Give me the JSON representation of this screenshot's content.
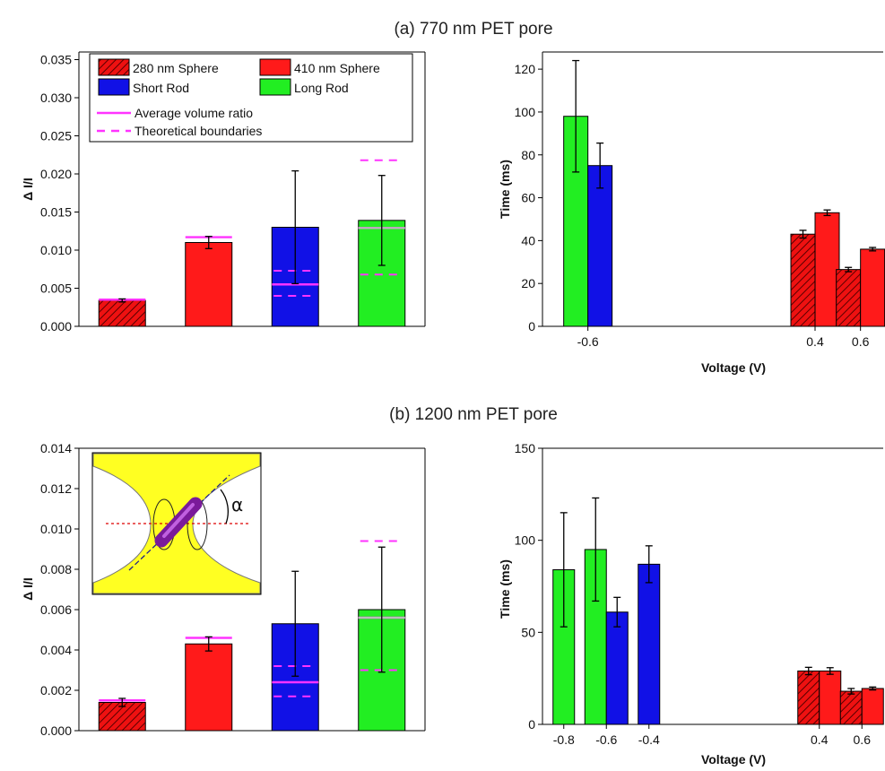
{
  "colors": {
    "sphere280": "#ee1111",
    "sphere410": "#ff1a1a",
    "short_rod": "#1111e6",
    "long_rod": "#22ee22",
    "average_line": "#ff33ff",
    "theoretical_line": "#ff33ff",
    "inner_line": "#bbbbbb",
    "inset_yellow": "#ffff22"
  },
  "chart_data": [
    {
      "id": "a_left",
      "type": "bar",
      "title": "(a)  770 nm PET pore",
      "xlabel": "",
      "ylabel": "Δ I/I",
      "ylim": [
        0,
        0.036
      ],
      "yticks": [
        "0.000",
        "0.005",
        "0.010",
        "0.015",
        "0.020",
        "0.025",
        "0.030",
        "0.035"
      ],
      "grid": false,
      "legend_placement": "top-left",
      "legend": [
        {
          "label": "280 nm Sphere",
          "style": "hatched-red"
        },
        {
          "label": "410 nm Sphere",
          "style": "red"
        },
        {
          "label": "Short Rod",
          "style": "blue"
        },
        {
          "label": "Long Rod",
          "style": "green"
        },
        {
          "label": "Average volume ratio",
          "style": "solid-magenta-line"
        },
        {
          "label": "Theoretical boundaries",
          "style": "dashed-magenta-line"
        }
      ],
      "bars": [
        {
          "category": "280 nm Sphere",
          "value": 0.0034,
          "err": 0.0002,
          "avg": 0.0035,
          "bounds": []
        },
        {
          "category": "410 nm Sphere",
          "value": 0.011,
          "err": 0.0008,
          "avg": 0.0117,
          "bounds": []
        },
        {
          "category": "Short Rod",
          "value": 0.013,
          "err": 0.0074,
          "avg": 0.0055,
          "bounds": [
            0.004,
            0.0073
          ]
        },
        {
          "category": "Long Rod",
          "value": 0.0139,
          "err": 0.0059,
          "avg": 0.0129,
          "bounds": [
            0.0068,
            0.0218
          ]
        }
      ]
    },
    {
      "id": "a_right",
      "type": "bar",
      "xlabel": "Voltage (V)",
      "ylabel": "Time (ms)",
      "xlim": [
        -0.8,
        0.7
      ],
      "ylim": [
        0,
        128
      ],
      "yticks": [
        "0",
        "20",
        "40",
        "60",
        "80",
        "100",
        "120"
      ],
      "xticks": [
        "-0.6",
        "0.4",
        "0.6"
      ],
      "grid": false,
      "groups": [
        {
          "voltage": -0.6,
          "bars": [
            {
              "series": "Long Rod",
              "value": 98,
              "err": 26
            },
            {
              "series": "Short Rod",
              "value": 75,
              "err": 10.5
            }
          ]
        },
        {
          "voltage": 0.4,
          "bars": [
            {
              "series": "280 nm Sphere",
              "value": 43,
              "err": 1.8
            },
            {
              "series": "410 nm Sphere",
              "value": 53,
              "err": 1.3
            }
          ]
        },
        {
          "voltage": 0.6,
          "bars": [
            {
              "series": "280 nm Sphere",
              "value": 26.5,
              "err": 1.0
            },
            {
              "series": "410 nm Sphere",
              "value": 36,
              "err": 0.8
            }
          ]
        }
      ]
    },
    {
      "id": "b_left",
      "type": "bar",
      "title": "(b)  1200 nm PET pore",
      "xlabel": "",
      "ylabel": "Δ I/I",
      "ylim": [
        0,
        0.014
      ],
      "yticks": [
        "0.000",
        "0.002",
        "0.004",
        "0.006",
        "0.008",
        "0.010",
        "0.012",
        "0.014"
      ],
      "grid": false,
      "inset": {
        "label": "α",
        "description_hidden": true
      },
      "bars": [
        {
          "category": "280 nm Sphere",
          "value": 0.0014,
          "err": 0.0002,
          "avg": 0.0015,
          "bounds": []
        },
        {
          "category": "410 nm Sphere",
          "value": 0.0043,
          "err": 0.00035,
          "avg": 0.0046,
          "bounds": []
        },
        {
          "category": "Short Rod",
          "value": 0.0053,
          "err": 0.0026,
          "avg": 0.0024,
          "bounds": [
            0.0017,
            0.0032
          ]
        },
        {
          "category": "Long Rod",
          "value": 0.006,
          "err": 0.0031,
          "avg": 0.0056,
          "bounds": [
            0.003,
            0.0094
          ]
        }
      ]
    },
    {
      "id": "b_right",
      "type": "bar",
      "xlabel": "Voltage (V)",
      "ylabel": "Time (ms)",
      "xlim": [
        -0.9,
        0.7
      ],
      "ylim": [
        0,
        150
      ],
      "yticks": [
        "0",
        "50",
        "100",
        "150"
      ],
      "xticks": [
        "-0.8",
        "-0.6",
        "-0.4",
        "0.4",
        "0.6"
      ],
      "grid": false,
      "groups": [
        {
          "voltage": -0.8,
          "bars": [
            {
              "series": "Long Rod",
              "value": 84,
              "err": 31
            }
          ]
        },
        {
          "voltage": -0.6,
          "bars": [
            {
              "series": "Long Rod",
              "value": 95,
              "err": 28
            },
            {
              "series": "Short Rod",
              "value": 61,
              "err": 8
            }
          ]
        },
        {
          "voltage": -0.4,
          "bars": [
            {
              "series": "Short Rod",
              "value": 87,
              "err": 10
            }
          ]
        },
        {
          "voltage": 0.4,
          "bars": [
            {
              "series": "280 nm Sphere",
              "value": 29,
              "err": 2
            },
            {
              "series": "410 nm Sphere",
              "value": 29,
              "err": 1.8
            }
          ]
        },
        {
          "voltage": 0.6,
          "bars": [
            {
              "series": "280 nm Sphere",
              "value": 18,
              "err": 1.5
            },
            {
              "series": "410 nm Sphere",
              "value": 19.5,
              "err": 0.8
            }
          ]
        }
      ]
    }
  ]
}
